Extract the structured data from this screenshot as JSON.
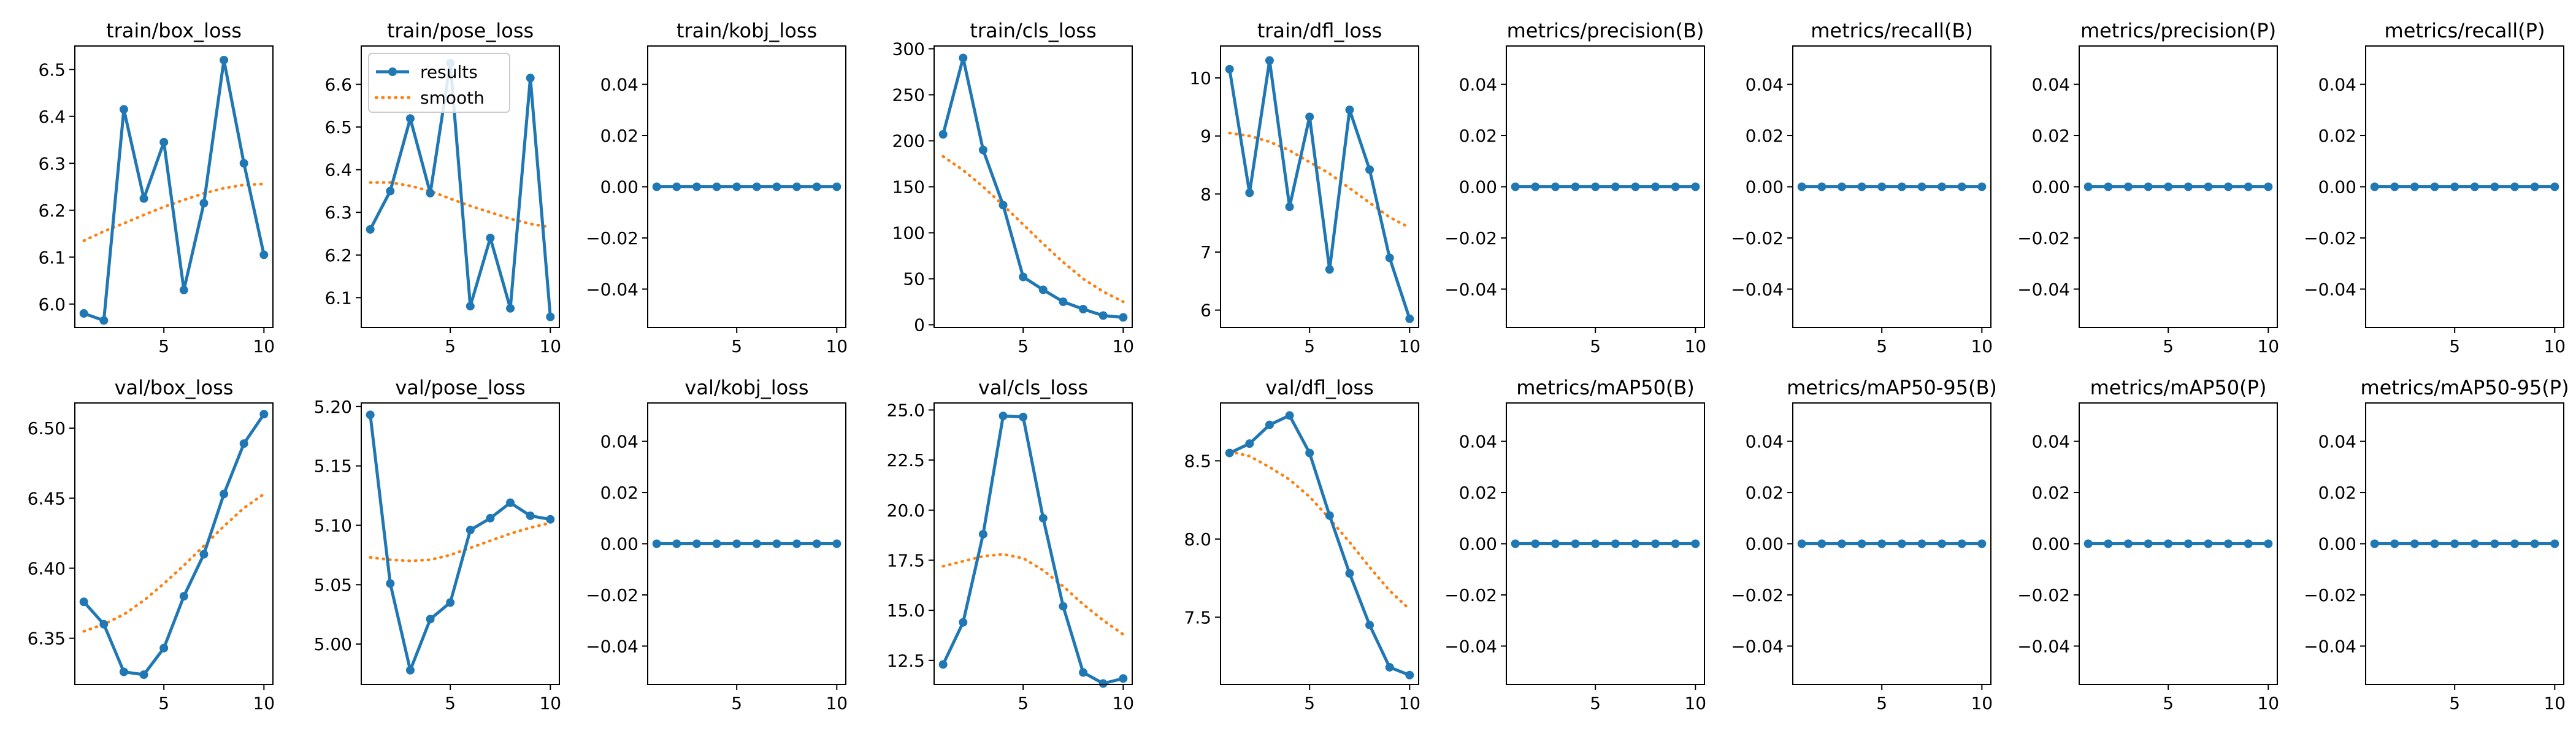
{
  "chart_data": [
    {
      "type": "line",
      "title": "train/box_loss",
      "x": [
        1,
        2,
        3,
        4,
        5,
        6,
        7,
        8,
        9,
        10
      ],
      "ylim": [
        5.95,
        6.55
      ],
      "yticks": [
        6.0,
        6.1,
        6.2,
        6.3,
        6.4,
        6.5
      ],
      "xticks": [
        5,
        10
      ],
      "series": [
        {
          "name": "results",
          "values": [
            5.98,
            5.965,
            6.415,
            6.225,
            6.345,
            6.03,
            6.215,
            6.52,
            6.3,
            6.105
          ]
        },
        {
          "name": "smooth",
          "values": [
            6.135,
            6.155,
            6.172,
            6.19,
            6.207,
            6.222,
            6.236,
            6.247,
            6.254,
            6.256
          ]
        }
      ]
    },
    {
      "type": "line",
      "title": "train/pose_loss",
      "x": [
        1,
        2,
        3,
        4,
        5,
        6,
        7,
        8,
        9,
        10
      ],
      "ylim": [
        6.03,
        6.69
      ],
      "yticks": [
        6.1,
        6.2,
        6.3,
        6.4,
        6.5,
        6.6
      ],
      "xticks": [
        5,
        10
      ],
      "legend": {
        "position": "upper-left",
        "entries": [
          "results",
          "smooth"
        ]
      },
      "series": [
        {
          "name": "results",
          "values": [
            6.26,
            6.35,
            6.52,
            6.345,
            6.65,
            6.08,
            6.24,
            6.075,
            6.615,
            6.055
          ]
        },
        {
          "name": "smooth",
          "values": [
            6.37,
            6.37,
            6.362,
            6.35,
            6.332,
            6.315,
            6.3,
            6.285,
            6.273,
            6.265
          ]
        }
      ]
    },
    {
      "type": "line",
      "title": "train/kobj_loss",
      "x": [
        1,
        2,
        3,
        4,
        5,
        6,
        7,
        8,
        9,
        10
      ],
      "ylim": [
        -0.055,
        0.055
      ],
      "yticks": [
        0.04,
        0.02,
        0.0,
        -0.02,
        -0.04
      ],
      "ytick_labels": [
        "0.04",
        "0.02",
        "0.00",
        "−0.02",
        "−0.04"
      ],
      "xticks": [
        5,
        10
      ],
      "series": [
        {
          "name": "results",
          "values": [
            0,
            0,
            0,
            0,
            0,
            0,
            0,
            0,
            0,
            0
          ]
        },
        {
          "name": "smooth",
          "values": [
            0,
            0,
            0,
            0,
            0,
            0,
            0,
            0,
            0,
            0
          ]
        }
      ]
    },
    {
      "type": "line",
      "title": "train/cls_loss",
      "x": [
        1,
        2,
        3,
        4,
        5,
        6,
        7,
        8,
        9,
        10
      ],
      "ylim": [
        -3,
        303
      ],
      "yticks": [
        0,
        50,
        100,
        150,
        200,
        250,
        300
      ],
      "xticks": [
        5,
        10
      ],
      "series": [
        {
          "name": "results",
          "values": [
            207,
            290,
            190,
            130,
            52,
            38,
            25,
            17,
            10,
            8
          ]
        },
        {
          "name": "smooth",
          "values": [
            183,
            168,
            150,
            130,
            109,
            88,
            68,
            50,
            36,
            25
          ]
        }
      ]
    },
    {
      "type": "line",
      "title": "train/dfl_loss",
      "x": [
        1,
        2,
        3,
        4,
        5,
        6,
        7,
        8,
        9,
        10
      ],
      "ylim": [
        5.7,
        10.55
      ],
      "yticks": [
        6,
        7,
        8,
        9,
        10
      ],
      "xticks": [
        5,
        10
      ],
      "series": [
        {
          "name": "results",
          "values": [
            10.15,
            8.02,
            10.3,
            7.78,
            9.33,
            6.7,
            9.45,
            8.42,
            6.9,
            5.85
          ]
        },
        {
          "name": "smooth",
          "values": [
            9.05,
            9.0,
            8.9,
            8.75,
            8.55,
            8.35,
            8.1,
            7.85,
            7.6,
            7.42
          ]
        }
      ]
    },
    {
      "type": "line",
      "title": "metrics/precision(B)",
      "x": [
        1,
        2,
        3,
        4,
        5,
        6,
        7,
        8,
        9,
        10
      ],
      "ylim": [
        -0.055,
        0.055
      ],
      "yticks": [
        0.04,
        0.02,
        0.0,
        -0.02,
        -0.04
      ],
      "ytick_labels": [
        "0.04",
        "0.02",
        "0.00",
        "−0.02",
        "−0.04"
      ],
      "xticks": [
        5,
        10
      ],
      "series": [
        {
          "name": "results",
          "values": [
            0,
            0,
            0,
            0,
            0,
            0,
            0,
            0,
            0,
            0
          ]
        },
        {
          "name": "smooth",
          "values": [
            0,
            0,
            0,
            0,
            0,
            0,
            0,
            0,
            0,
            0
          ]
        }
      ]
    },
    {
      "type": "line",
      "title": "metrics/recall(B)",
      "x": [
        1,
        2,
        3,
        4,
        5,
        6,
        7,
        8,
        9,
        10
      ],
      "ylim": [
        -0.055,
        0.055
      ],
      "yticks": [
        0.04,
        0.02,
        0.0,
        -0.02,
        -0.04
      ],
      "ytick_labels": [
        "0.04",
        "0.02",
        "0.00",
        "−0.02",
        "−0.04"
      ],
      "xticks": [
        5,
        10
      ],
      "series": [
        {
          "name": "results",
          "values": [
            0,
            0,
            0,
            0,
            0,
            0,
            0,
            0,
            0,
            0
          ]
        },
        {
          "name": "smooth",
          "values": [
            0,
            0,
            0,
            0,
            0,
            0,
            0,
            0,
            0,
            0
          ]
        }
      ]
    },
    {
      "type": "line",
      "title": "metrics/precision(P)",
      "x": [
        1,
        2,
        3,
        4,
        5,
        6,
        7,
        8,
        9,
        10
      ],
      "ylim": [
        -0.055,
        0.055
      ],
      "yticks": [
        0.04,
        0.02,
        0.0,
        -0.02,
        -0.04
      ],
      "ytick_labels": [
        "0.04",
        "0.02",
        "0.00",
        "−0.02",
        "−0.04"
      ],
      "xticks": [
        5,
        10
      ],
      "series": [
        {
          "name": "results",
          "values": [
            0,
            0,
            0,
            0,
            0,
            0,
            0,
            0,
            0,
            0
          ]
        },
        {
          "name": "smooth",
          "values": [
            0,
            0,
            0,
            0,
            0,
            0,
            0,
            0,
            0,
            0
          ]
        }
      ]
    },
    {
      "type": "line",
      "title": "metrics/recall(P)",
      "x": [
        1,
        2,
        3,
        4,
        5,
        6,
        7,
        8,
        9,
        10
      ],
      "ylim": [
        -0.055,
        0.055
      ],
      "yticks": [
        0.04,
        0.02,
        0.0,
        -0.02,
        -0.04
      ],
      "ytick_labels": [
        "0.04",
        "0.02",
        "0.00",
        "−0.02",
        "−0.04"
      ],
      "xticks": [
        5,
        10
      ],
      "series": [
        {
          "name": "results",
          "values": [
            0,
            0,
            0,
            0,
            0,
            0,
            0,
            0,
            0,
            0
          ]
        },
        {
          "name": "smooth",
          "values": [
            0,
            0,
            0,
            0,
            0,
            0,
            0,
            0,
            0,
            0
          ]
        }
      ]
    },
    {
      "type": "line",
      "title": "val/box_loss",
      "x": [
        1,
        2,
        3,
        4,
        5,
        6,
        7,
        8,
        9,
        10
      ],
      "ylim": [
        6.317,
        6.518
      ],
      "yticks": [
        6.35,
        6.4,
        6.45,
        6.5
      ],
      "xticks": [
        5,
        10
      ],
      "series": [
        {
          "name": "results",
          "values": [
            6.376,
            6.36,
            6.326,
            6.324,
            6.343,
            6.38,
            6.41,
            6.453,
            6.489,
            6.51
          ]
        },
        {
          "name": "smooth",
          "values": [
            6.355,
            6.36,
            6.367,
            6.377,
            6.389,
            6.402,
            6.416,
            6.43,
            6.443,
            6.453
          ]
        }
      ]
    },
    {
      "type": "line",
      "title": "val/pose_loss",
      "x": [
        1,
        2,
        3,
        4,
        5,
        6,
        7,
        8,
        9,
        10
      ],
      "ylim": [
        4.966,
        5.203
      ],
      "yticks": [
        5.0,
        5.05,
        5.1,
        5.15,
        5.2
      ],
      "xticks": [
        5,
        10
      ],
      "series": [
        {
          "name": "results",
          "values": [
            5.193,
            5.051,
            4.978,
            5.021,
            5.035,
            5.096,
            5.106,
            5.119,
            5.108,
            5.105
          ]
        },
        {
          "name": "smooth",
          "values": [
            5.073,
            5.071,
            5.07,
            5.071,
            5.075,
            5.081,
            5.087,
            5.093,
            5.098,
            5.102
          ]
        }
      ]
    },
    {
      "type": "line",
      "title": "val/kobj_loss",
      "x": [
        1,
        2,
        3,
        4,
        5,
        6,
        7,
        8,
        9,
        10
      ],
      "ylim": [
        -0.055,
        0.055
      ],
      "yticks": [
        0.04,
        0.02,
        0.0,
        -0.02,
        -0.04
      ],
      "ytick_labels": [
        "0.04",
        "0.02",
        "0.00",
        "−0.02",
        "−0.04"
      ],
      "xticks": [
        5,
        10
      ],
      "series": [
        {
          "name": "results",
          "values": [
            0,
            0,
            0,
            0,
            0,
            0,
            0,
            0,
            0,
            0
          ]
        },
        {
          "name": "smooth",
          "values": [
            0,
            0,
            0,
            0,
            0,
            0,
            0,
            0,
            0,
            0
          ]
        }
      ]
    },
    {
      "type": "line",
      "title": "val/cls_loss",
      "x": [
        1,
        2,
        3,
        4,
        5,
        6,
        7,
        8,
        9,
        10
      ],
      "ylim": [
        11.3,
        25.35
      ],
      "yticks": [
        12.5,
        15.0,
        17.5,
        20.0,
        22.5,
        25.0
      ],
      "xticks": [
        5,
        10
      ],
      "series": [
        {
          "name": "results",
          "values": [
            12.3,
            14.4,
            18.8,
            24.7,
            24.65,
            19.6,
            15.2,
            11.9,
            11.35,
            11.6
          ]
        },
        {
          "name": "smooth",
          "values": [
            17.2,
            17.45,
            17.7,
            17.8,
            17.6,
            17.0,
            16.2,
            15.3,
            14.5,
            13.8
          ]
        }
      ]
    },
    {
      "type": "line",
      "title": "val/dfl_loss",
      "x": [
        1,
        2,
        3,
        4,
        5,
        6,
        7,
        8,
        9,
        10
      ],
      "ylim": [
        7.07,
        8.87
      ],
      "yticks": [
        7.5,
        8.0,
        8.5
      ],
      "xticks": [
        5,
        10
      ],
      "series": [
        {
          "name": "results",
          "values": [
            8.55,
            8.61,
            8.73,
            8.79,
            8.55,
            8.15,
            7.78,
            7.45,
            7.18,
            7.13
          ]
        },
        {
          "name": "smooth",
          "values": [
            8.56,
            8.53,
            8.46,
            8.38,
            8.27,
            8.13,
            7.98,
            7.82,
            7.67,
            7.55
          ]
        }
      ]
    },
    {
      "type": "line",
      "title": "metrics/mAP50(B)",
      "x": [
        1,
        2,
        3,
        4,
        5,
        6,
        7,
        8,
        9,
        10
      ],
      "ylim": [
        -0.055,
        0.055
      ],
      "yticks": [
        0.04,
        0.02,
        0.0,
        -0.02,
        -0.04
      ],
      "ytick_labels": [
        "0.04",
        "0.02",
        "0.00",
        "−0.02",
        "−0.04"
      ],
      "xticks": [
        5,
        10
      ],
      "series": [
        {
          "name": "results",
          "values": [
            0,
            0,
            0,
            0,
            0,
            0,
            0,
            0,
            0,
            0
          ]
        },
        {
          "name": "smooth",
          "values": [
            0,
            0,
            0,
            0,
            0,
            0,
            0,
            0,
            0,
            0
          ]
        }
      ]
    },
    {
      "type": "line",
      "title": "metrics/mAP50-95(B)",
      "x": [
        1,
        2,
        3,
        4,
        5,
        6,
        7,
        8,
        9,
        10
      ],
      "ylim": [
        -0.055,
        0.055
      ],
      "yticks": [
        0.04,
        0.02,
        0.0,
        -0.02,
        -0.04
      ],
      "ytick_labels": [
        "0.04",
        "0.02",
        "0.00",
        "−0.02",
        "−0.04"
      ],
      "xticks": [
        5,
        10
      ],
      "series": [
        {
          "name": "results",
          "values": [
            0,
            0,
            0,
            0,
            0,
            0,
            0,
            0,
            0,
            0
          ]
        },
        {
          "name": "smooth",
          "values": [
            0,
            0,
            0,
            0,
            0,
            0,
            0,
            0,
            0,
            0
          ]
        }
      ]
    },
    {
      "type": "line",
      "title": "metrics/mAP50(P)",
      "x": [
        1,
        2,
        3,
        4,
        5,
        6,
        7,
        8,
        9,
        10
      ],
      "ylim": [
        -0.055,
        0.055
      ],
      "yticks": [
        0.04,
        0.02,
        0.0,
        -0.02,
        -0.04
      ],
      "ytick_labels": [
        "0.04",
        "0.02",
        "0.00",
        "−0.02",
        "−0.04"
      ],
      "xticks": [
        5,
        10
      ],
      "series": [
        {
          "name": "results",
          "values": [
            0,
            0,
            0,
            0,
            0,
            0,
            0,
            0,
            0,
            0
          ]
        },
        {
          "name": "smooth",
          "values": [
            0,
            0,
            0,
            0,
            0,
            0,
            0,
            0,
            0,
            0
          ]
        }
      ]
    },
    {
      "type": "line",
      "title": "metrics/mAP50-95(P)",
      "x": [
        1,
        2,
        3,
        4,
        5,
        6,
        7,
        8,
        9,
        10
      ],
      "ylim": [
        -0.055,
        0.055
      ],
      "yticks": [
        0.04,
        0.02,
        0.0,
        -0.02,
        -0.04
      ],
      "ytick_labels": [
        "0.04",
        "0.02",
        "0.00",
        "−0.02",
        "−0.04"
      ],
      "xticks": [
        5,
        10
      ],
      "series": [
        {
          "name": "results",
          "values": [
            0,
            0,
            0,
            0,
            0,
            0,
            0,
            0,
            0,
            0
          ]
        },
        {
          "name": "smooth",
          "values": [
            0,
            0,
            0,
            0,
            0,
            0,
            0,
            0,
            0,
            0
          ]
        }
      ]
    }
  ],
  "colors": {
    "results": "#1f77b4",
    "smooth": "#ff7f0e",
    "axes": "#000000",
    "background": "#ffffff"
  }
}
